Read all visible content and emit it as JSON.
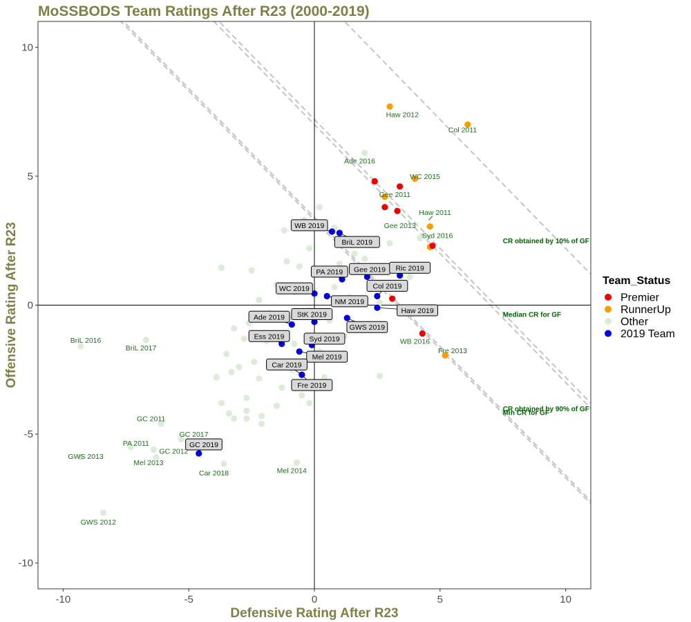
{
  "chart_data": {
    "type": "scatter",
    "title": "MoSSBODS Team Ratings After R23 (2000-2019)",
    "xlabel": "Defensive Rating After R23",
    "ylabel": "Offensive Rating After R23",
    "xlim": [
      -11,
      11
    ],
    "ylim": [
      -11,
      11
    ],
    "xticks": [
      -10,
      -5,
      0,
      5,
      10
    ],
    "yticks": [
      -10,
      -5,
      0,
      5,
      10
    ],
    "grid": false,
    "legend": {
      "title": "Team_Status",
      "placement": "right",
      "entries": [
        {
          "name": "Premier",
          "color": "#ee0000"
        },
        {
          "name": "RunnerUp",
          "color": "#f5a000"
        },
        {
          "name": "Other",
          "color": "#dcecd8"
        },
        {
          "name": "2019 Team",
          "color": "#0000ee"
        }
      ]
    },
    "colors": {
      "Premier": "#ee0000",
      "RunnerUp": "#f5a000",
      "Other": "#dcecd8",
      "2019 Team": "#0000ee"
    },
    "reference_lines": [
      {
        "label": "CR obtained by 10% of GF",
        "intercept": 7.0
      },
      {
        "label": "Median CR for GF",
        "intercept": 7.2
      },
      {
        "label": "CR obtained by 90% of GF",
        "intercept": 3.4
      },
      {
        "label": "Min CR for GF",
        "intercept": 3.4
      },
      {
        "label": "",
        "intercept": 12.2
      },
      {
        "label": "",
        "intercept": 3.3
      }
    ],
    "series": [
      {
        "name": "Premier",
        "points": [
          {
            "x": 2.4,
            "y": 4.8
          },
          {
            "x": 3.4,
            "y": 4.6
          },
          {
            "x": 2.8,
            "y": 3.8
          },
          {
            "x": 3.3,
            "y": 3.65
          },
          {
            "x": 4.7,
            "y": 2.3
          },
          {
            "x": 3.1,
            "y": 0.25
          },
          {
            "x": 4.3,
            "y": -1.1
          }
        ]
      },
      {
        "name": "RunnerUp",
        "points": [
          {
            "x": 3.0,
            "y": 7.7
          },
          {
            "x": 6.1,
            "y": 7.0
          },
          {
            "x": 4.0,
            "y": 4.9
          },
          {
            "x": 2.8,
            "y": 4.2
          },
          {
            "x": 4.6,
            "y": 3.05
          },
          {
            "x": 4.6,
            "y": 2.25
          },
          {
            "x": 5.2,
            "y": -1.95
          }
        ]
      },
      {
        "name": "Other",
        "points": [
          {
            "x": 2.0,
            "y": 5.9
          },
          {
            "x": 0.2,
            "y": 3.8
          },
          {
            "x": -0.4,
            "y": 3.3
          },
          {
            "x": 0.8,
            "y": 3.0
          },
          {
            "x": -1.2,
            "y": 2.9
          },
          {
            "x": 1.0,
            "y": 2.4
          },
          {
            "x": 1.6,
            "y": 2.0
          },
          {
            "x": -0.2,
            "y": 2.2
          },
          {
            "x": -3.7,
            "y": 1.45
          },
          {
            "x": -2.5,
            "y": 1.35
          },
          {
            "x": -1.1,
            "y": 1.7
          },
          {
            "x": -0.6,
            "y": 1.5
          },
          {
            "x": 0.4,
            "y": 1.2
          },
          {
            "x": 1.0,
            "y": 1.6
          },
          {
            "x": 2.0,
            "y": 1.8
          },
          {
            "x": 3.0,
            "y": 2.4
          },
          {
            "x": 4.2,
            "y": 2.6
          },
          {
            "x": 3.8,
            "y": 1.1
          },
          {
            "x": -1.5,
            "y": 0.8
          },
          {
            "x": -0.8,
            "y": 0.5
          },
          {
            "x": 0.8,
            "y": 0.7
          },
          {
            "x": 1.4,
            "y": 0.3
          },
          {
            "x": 2.2,
            "y": 0.6
          },
          {
            "x": 2.6,
            "y": 0.1
          },
          {
            "x": -2.2,
            "y": 0.2
          },
          {
            "x": -1.8,
            "y": -0.3
          },
          {
            "x": -1.0,
            "y": -0.5
          },
          {
            "x": -0.2,
            "y": -0.2
          },
          {
            "x": 0.6,
            "y": -0.6
          },
          {
            "x": 1.8,
            "y": -0.8
          },
          {
            "x": 2.8,
            "y": -0.9
          },
          {
            "x": -3.2,
            "y": -0.9
          },
          {
            "x": -2.6,
            "y": -0.7
          },
          {
            "x": -2.8,
            "y": -1.3
          },
          {
            "x": -1.9,
            "y": -1.4
          },
          {
            "x": -0.8,
            "y": -1.5
          },
          {
            "x": 0.2,
            "y": -1.8
          },
          {
            "x": 1.2,
            "y": -1.2
          },
          {
            "x": -3.5,
            "y": -1.9
          },
          {
            "x": -3.0,
            "y": -2.4
          },
          {
            "x": -2.4,
            "y": -2.2
          },
          {
            "x": -1.5,
            "y": -2.2
          },
          {
            "x": -0.9,
            "y": -2.5
          },
          {
            "x": 0.4,
            "y": -2.8
          },
          {
            "x": 2.6,
            "y": -2.75
          },
          {
            "x": -3.9,
            "y": -2.8
          },
          {
            "x": -3.3,
            "y": -2.6
          },
          {
            "x": -2.2,
            "y": -2.85
          },
          {
            "x": -1.3,
            "y": -3.2
          },
          {
            "x": -0.5,
            "y": -3.5
          },
          {
            "x": -3.7,
            "y": -3.8
          },
          {
            "x": -2.7,
            "y": -3.6
          },
          {
            "x": -1.5,
            "y": -3.9
          },
          {
            "x": -0.2,
            "y": -3.8
          },
          {
            "x": -3.4,
            "y": -4.2
          },
          {
            "x": -2.7,
            "y": -4.1
          },
          {
            "x": -2.1,
            "y": -4.3
          },
          {
            "x": -3.2,
            "y": -4.4
          },
          {
            "x": -2.7,
            "y": -4.4
          },
          {
            "x": -2.1,
            "y": -4.6
          },
          {
            "x": -9.3,
            "y": -1.6
          },
          {
            "x": -6.7,
            "y": -1.35
          },
          {
            "x": -6.1,
            "y": -4.6
          },
          {
            "x": -5.3,
            "y": -5.2
          },
          {
            "x": -7.3,
            "y": -5.5
          },
          {
            "x": -6.4,
            "y": -5.6
          },
          {
            "x": -9.3,
            "y": -5.9
          },
          {
            "x": -6.3,
            "y": -5.9
          },
          {
            "x": -3.6,
            "y": -6.15
          },
          {
            "x": -0.7,
            "y": -6.1
          },
          {
            "x": -8.4,
            "y": -8.05
          }
        ]
      },
      {
        "name": "2019 Team",
        "points": [
          {
            "x": 0.7,
            "y": 2.85,
            "label": "WB 2019"
          },
          {
            "x": 1.0,
            "y": 2.8,
            "label": "BriL 2019"
          },
          {
            "x": 1.1,
            "y": 1.0,
            "label": "PA 2019"
          },
          {
            "x": 2.1,
            "y": 1.1,
            "label": "Gee 2019"
          },
          {
            "x": 3.4,
            "y": 1.15,
            "label": "Ric 2019"
          },
          {
            "x": 2.5,
            "y": 0.35,
            "label": "Col 2019"
          },
          {
            "x": 0.0,
            "y": 0.45,
            "label": "WC 2019"
          },
          {
            "x": 0.5,
            "y": 0.35,
            "label": "NM 2019"
          },
          {
            "x": 2.5,
            "y": -0.1,
            "label": "Haw 2019"
          },
          {
            "x": 1.3,
            "y": -0.5,
            "label": "GWS 2019"
          },
          {
            "x": 0.0,
            "y": -0.65,
            "label": "StK 2019"
          },
          {
            "x": -0.9,
            "y": -0.75,
            "label": "Ade 2019"
          },
          {
            "x": -1.3,
            "y": -1.5,
            "label": "Ess 2019"
          },
          {
            "x": -0.1,
            "y": -1.55,
            "label": "Syd 2019"
          },
          {
            "x": -0.6,
            "y": -1.8,
            "label": "Mel 2019"
          },
          {
            "x": -0.5,
            "y": -2.7,
            "label": "Car 2019"
          },
          {
            "x": -0.5,
            "y": -2.7,
            "label": "Fre 2019"
          },
          {
            "x": -4.6,
            "y": -5.75,
            "label": "GC 2019"
          }
        ]
      }
    ],
    "point_labels": [
      "Haw 2012",
      "Col 2011",
      "Ade 2016",
      "WC 2015",
      "Gee 2011",
      "Haw 2011",
      "Gee 2013",
      "Syd 2016",
      "WB 2016",
      "Fre 2013",
      "BriL 2016",
      "BriL 2017",
      "GC 2011",
      "GC 2017",
      "PA 2011",
      "GC 2012",
      "GWS 2013",
      "Mel 2013",
      "Car 2018",
      "Mel 2014",
      "GWS 2012"
    ]
  }
}
